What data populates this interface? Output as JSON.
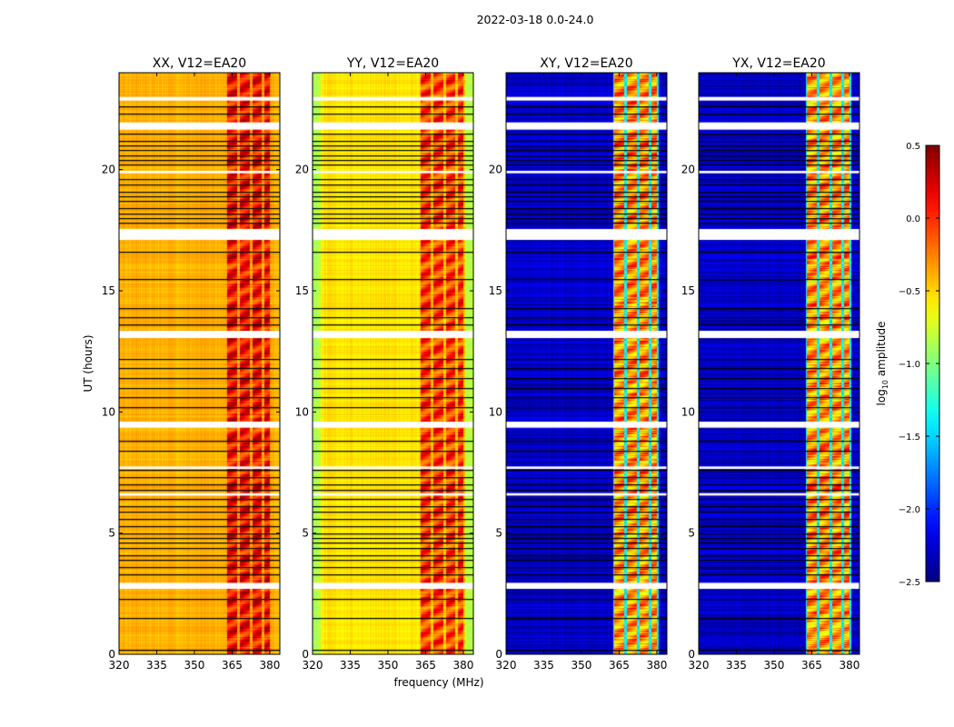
{
  "chart_data": {
    "type": "heatmap",
    "title": "2022-03-18 0.0-24.0",
    "xlabel": "frequency (MHz)",
    "ylabel": "UT (hours)",
    "xlim": [
      320,
      384
    ],
    "ylim": [
      0,
      24
    ],
    "x_ticks": [
      320,
      335,
      350,
      365,
      380
    ],
    "y_ticks": [
      0,
      5,
      10,
      15,
      20
    ],
    "colormap": "jet",
    "colorbar": {
      "label_main": "log",
      "label_sub": "10",
      "label_rest": " amplitude",
      "range": [
        -2.5,
        0.5
      ],
      "ticks": [
        "0.5",
        "0.0",
        "−0.5",
        "−1.0",
        "−1.5",
        "−2.0",
        "−2.5"
      ],
      "tick_values": [
        0.5,
        0.0,
        -0.5,
        -1.0,
        -1.5,
        -2.0,
        -2.5
      ],
      "placement": "right"
    },
    "panels": [
      {
        "title": "XX, V12=EA20",
        "base_level": -0.4,
        "band_level": 0.1,
        "band_gap_level": -0.35
      },
      {
        "title": "YY, V12=EA20",
        "base_level": -0.55,
        "band_level": -0.05,
        "band_gap_level": -0.45
      },
      {
        "title": "XY, V12=EA20",
        "base_level": -2.3,
        "band_level": -0.3,
        "band_gap_level": -1.4
      },
      {
        "title": "YX, V12=EA20",
        "base_level": -2.3,
        "band_level": -0.3,
        "band_gap_level": -1.4
      }
    ],
    "bright_band_mhz": [
      [
        363,
        367
      ],
      [
        368,
        372
      ],
      [
        373,
        376.5
      ],
      [
        377.5,
        380
      ]
    ],
    "flagged_hours": [
      [
        22.85,
        23.0
      ],
      [
        21.65,
        21.95
      ],
      [
        19.85,
        19.95
      ],
      [
        17.1,
        17.55
      ],
      [
        13.05,
        13.35
      ],
      [
        9.35,
        9.6
      ],
      [
        7.65,
        7.75
      ],
      [
        6.55,
        6.65
      ],
      [
        2.7,
        2.95
      ]
    ],
    "dark_line_hours": [
      22.6,
      22.3,
      21.5,
      21.2,
      21.0,
      20.8,
      20.6,
      20.4,
      20.2,
      19.6,
      19.4,
      19.1,
      18.9,
      18.7,
      18.4,
      18.2,
      18.0,
      17.8,
      16.6,
      15.5,
      14.3,
      13.9,
      13.6,
      12.2,
      11.8,
      11.4,
      11.0,
      10.6,
      10.2,
      8.8,
      8.4,
      7.6,
      7.3,
      7.0,
      6.8,
      6.4,
      6.1,
      5.9,
      5.6,
      5.3,
      5.0,
      4.8,
      4.6,
      4.4,
      4.1,
      3.9,
      3.6,
      3.3,
      2.3,
      1.5,
      0.2
    ]
  }
}
